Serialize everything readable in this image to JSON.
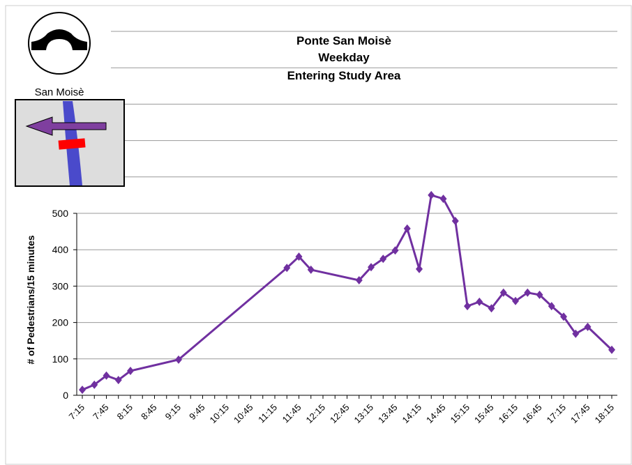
{
  "chart_data": {
    "type": "line",
    "title": [
      "Ponte San Moisè",
      "Weekday",
      "Entering Study Area"
    ],
    "icon_label": "San Moisè",
    "y_label": "# of Pedestrians/15 minutes",
    "categories": [
      "7:15",
      null,
      "7:45",
      null,
      "8:15",
      null,
      "8:45",
      null,
      "9:15",
      null,
      "9:45",
      null,
      "10:15",
      null,
      "10:45",
      null,
      "11:15",
      null,
      "11:45",
      null,
      "12:15",
      null,
      "12:45",
      null,
      "13:15",
      null,
      "13:45",
      null,
      "14:15",
      null,
      "14:45",
      null,
      "15:15",
      null,
      "15:45",
      null,
      "16:15",
      null,
      "16:45",
      null,
      "17:15",
      null,
      "17:45",
      null,
      "18:15"
    ],
    "series": [
      {
        "name": "Entering Study Area",
        "color": "#7030a0",
        "values": [
          15,
          29,
          54,
          42,
          67,
          null,
          null,
          null,
          98,
          null,
          null,
          null,
          null,
          null,
          null,
          null,
          null,
          350,
          381,
          345,
          null,
          null,
          null,
          316,
          352,
          375,
          398,
          458,
          347,
          550,
          540,
          479,
          245,
          257,
          239,
          282,
          259,
          282,
          276,
          245,
          216,
          169,
          188,
          null,
          125
        ]
      }
    ],
    "ylim": [
      0,
      1000
    ],
    "yticks": [
      0,
      100,
      200,
      300,
      400,
      500
    ],
    "grid": true
  }
}
